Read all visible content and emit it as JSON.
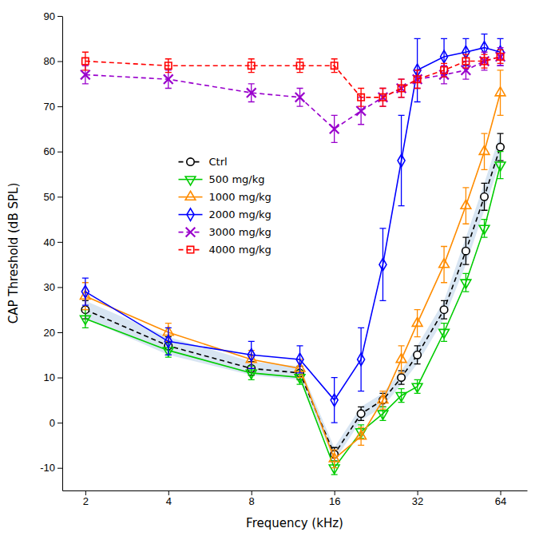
{
  "chart_data": {
    "type": "line",
    "xlabel": "Frequency (kHz)",
    "ylabel": "CAP Threshold (dB SPL)",
    "x": [
      2,
      4,
      8,
      12,
      16,
      20,
      24,
      28,
      32,
      40,
      48,
      56,
      64
    ],
    "xlim": [
      1.65,
      80
    ],
    "xticks": [
      2,
      4,
      8,
      16,
      32,
      64
    ],
    "ylim": [
      -15,
      90
    ],
    "yticks": [
      -10,
      0,
      10,
      20,
      30,
      40,
      50,
      60,
      70,
      80,
      90
    ],
    "log": "x",
    "grid": false,
    "legend": "left",
    "series": [
      {
        "name": "Ctrl",
        "color": "black",
        "marker": "circle",
        "line_style": "dashed",
        "values": [
          25,
          17,
          12,
          11,
          -7,
          2,
          5,
          10,
          15,
          25,
          38,
          50,
          61
        ],
        "errors": [
          2,
          2,
          1.5,
          1.5,
          1.5,
          1.5,
          1.5,
          1.5,
          2,
          2,
          3,
          3,
          3
        ],
        "band": {
          "color": "#b8d0e8",
          "lower": [
            23,
            15,
            10.5,
            9.5,
            -8.5,
            0.5,
            3.5,
            8.5,
            13,
            23,
            35,
            47,
            58
          ],
          "upper": [
            27,
            19,
            13.5,
            12.5,
            -5.5,
            3.5,
            6.5,
            11.5,
            17,
            27,
            41,
            53,
            64
          ]
        }
      },
      {
        "name": "500 mg/kg",
        "color": "#00cc00",
        "marker": "triangle-down",
        "line_style": "solid",
        "values": [
          23,
          16,
          11,
          10,
          -10,
          -2,
          2,
          6,
          8,
          20,
          31,
          43,
          57
        ],
        "errors": [
          2,
          1.5,
          1.5,
          1.5,
          1.5,
          1.5,
          1.5,
          1.5,
          1.5,
          2,
          2,
          2,
          3
        ]
      },
      {
        "name": "1000 mg/kg",
        "color": "#ff8c00",
        "marker": "triangle-up",
        "line_style": "solid",
        "values": [
          28,
          20,
          14,
          12,
          -8,
          -3,
          5,
          14,
          22,
          35,
          48,
          60,
          73
        ],
        "errors": [
          3,
          2,
          2,
          2,
          2,
          2,
          2,
          3,
          3,
          4,
          4,
          4,
          5
        ]
      },
      {
        "name": "2000 mg/kg",
        "color": "blue",
        "marker": "diamond",
        "line_style": "solid",
        "values": [
          29,
          18,
          15,
          14,
          5,
          14,
          35,
          58,
          78,
          81,
          82,
          83,
          82
        ],
        "errors": [
          3,
          3,
          3,
          3,
          5,
          7,
          8,
          10,
          7,
          4,
          3,
          3,
          3
        ]
      },
      {
        "name": "3000 mg/kg",
        "color": "#9900cc",
        "marker": "x",
        "line_style": "dashed",
        "values": [
          77,
          76,
          73,
          72,
          65,
          69,
          72,
          74,
          76,
          77,
          78,
          80,
          81
        ],
        "errors": [
          2,
          2,
          2,
          2,
          3,
          3,
          2,
          2,
          2,
          2,
          2,
          2,
          2
        ]
      },
      {
        "name": "4000 mg/kg",
        "color": "red",
        "marker": "square",
        "line_style": "dashed",
        "values": [
          80,
          79,
          79,
          79,
          79,
          72,
          72,
          74,
          76,
          78,
          80,
          80,
          81
        ],
        "errors": [
          2,
          1.5,
          1.5,
          1.5,
          1.5,
          2,
          2,
          2,
          2,
          1.5,
          1.5,
          1.5,
          1.5
        ]
      }
    ]
  }
}
